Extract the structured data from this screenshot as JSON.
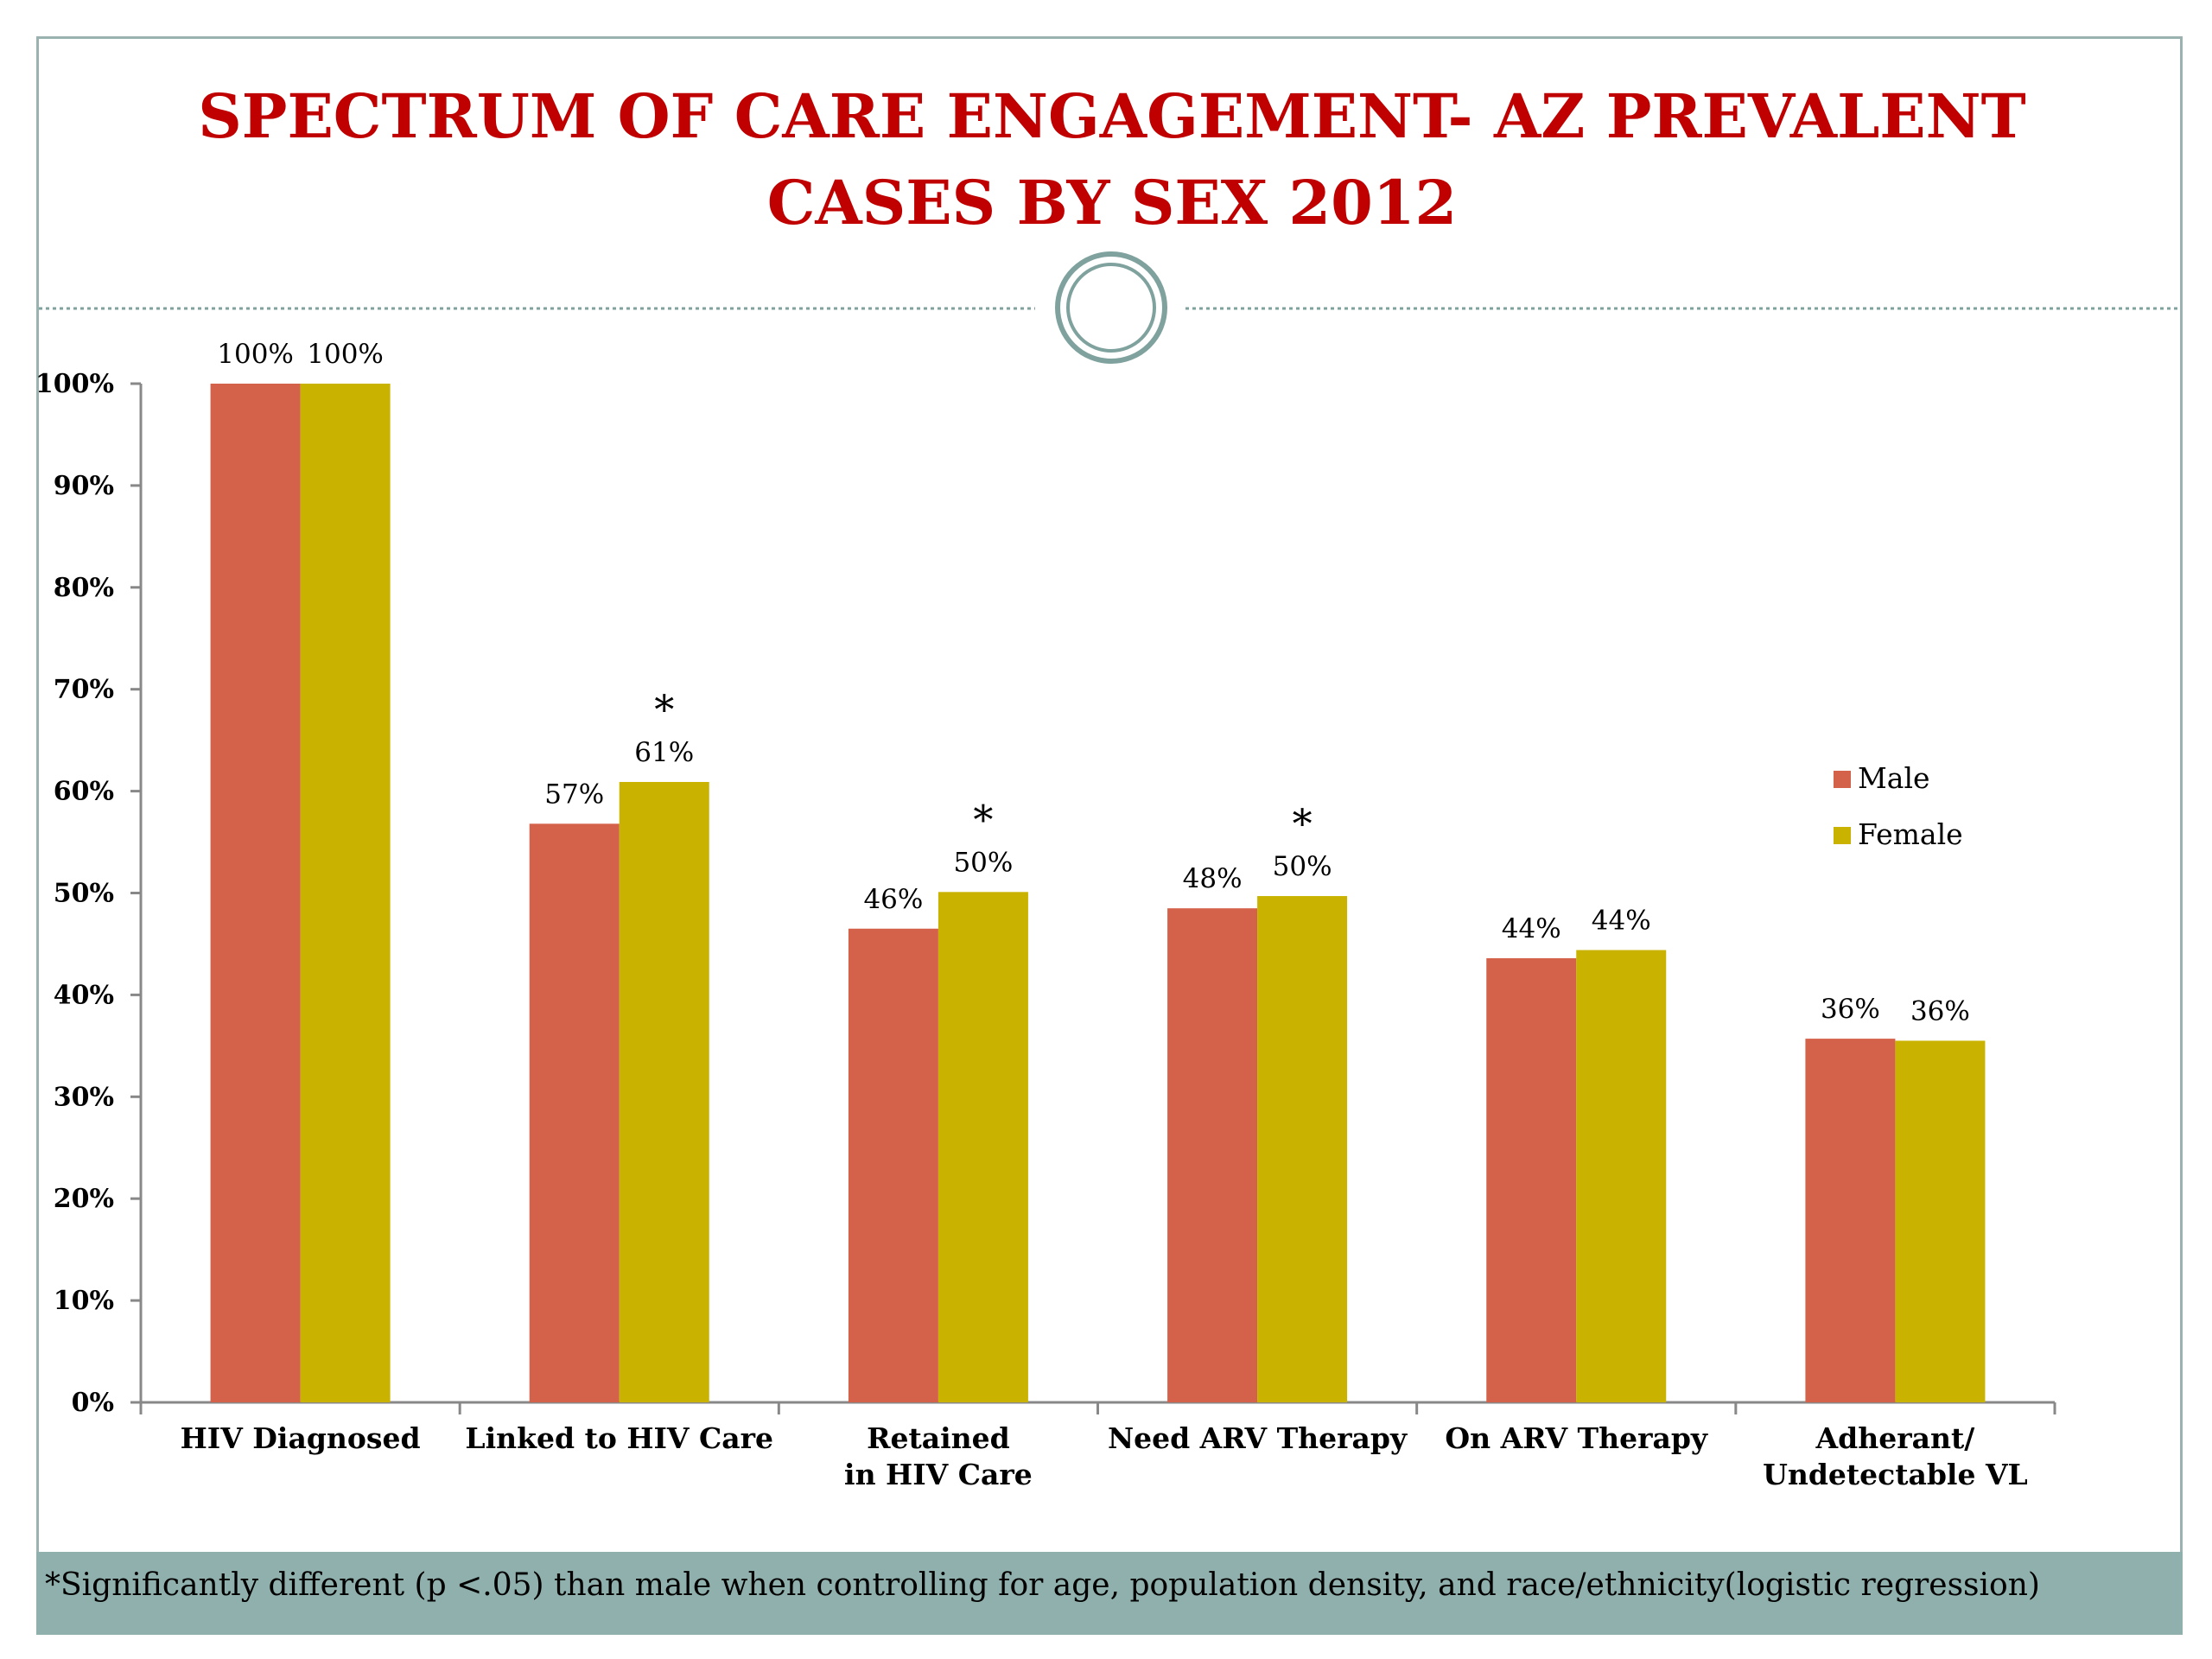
{
  "title": "SPECTRUM OF CARE ENGAGEMENT- AZ PREVALENT CASES BY SEX 2012",
  "footnote": "*Significantly different (p <.05) than male when controlling for age, population density, and race/ethnicity(logistic regression)",
  "colors": {
    "title": "#c00000",
    "male": "#d4614a",
    "female": "#c9b300",
    "footer": "#8fb0ad",
    "divider": "#7fa29e"
  },
  "chart_data": {
    "type": "bar",
    "categories": [
      "HIV Diagnosed",
      "Linked to HIV Care",
      "Retained in HIV Care",
      "Need ARV Therapy",
      "On ARV Therapy",
      "Adherant/ Undetectable VL"
    ],
    "series": [
      {
        "name": "Male",
        "values": [
          100,
          56.8,
          46.5,
          48.5,
          43.6,
          35.7
        ],
        "labels": [
          "100%",
          "57%",
          "46%",
          "48%",
          "44%",
          "36%"
        ]
      },
      {
        "name": "Female",
        "values": [
          100,
          60.9,
          50.1,
          49.7,
          44.4,
          35.5
        ],
        "labels": [
          "100%",
          "61%",
          "50%",
          "50%",
          "44%",
          "36%"
        ]
      }
    ],
    "significance_marker": "*",
    "significant_categories": [
      false,
      true,
      true,
      true,
      false,
      false
    ],
    "ylim": [
      0,
      100
    ],
    "yticks": [
      "0%",
      "10%",
      "20%",
      "30%",
      "40%",
      "50%",
      "60%",
      "70%",
      "80%",
      "90%",
      "100%"
    ],
    "legend": "right",
    "grid": false
  }
}
